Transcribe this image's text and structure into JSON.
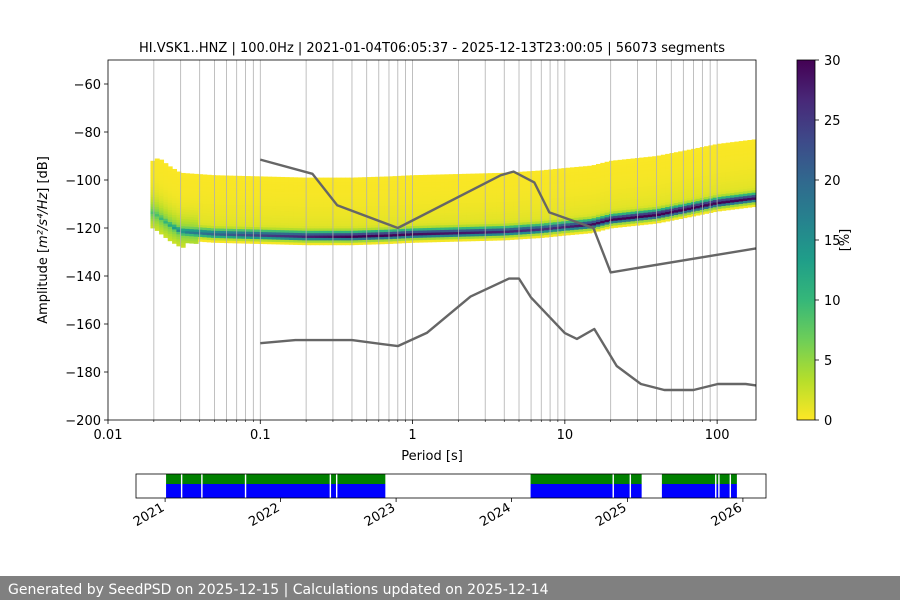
{
  "chart_data": [
    {
      "type": "heatmap",
      "title": "HI.VSK1..HNZ | 100.0Hz | 2021-01-04T06:05:37 - 2025-12-13T23:00:05 | 56073 segments",
      "xlabel": "Period [s]",
      "ylabel_main": "Amplitude [",
      "ylabel_math": "m²/s⁴/Hz",
      "ylabel_tail": "] [dB]",
      "xscale": "log",
      "xlim": [
        0.01,
        180
      ],
      "ylim": [
        -200,
        -50
      ],
      "xticks": [
        {
          "value": 0.01,
          "label": "0.01"
        },
        {
          "value": 0.1,
          "label": "0.1"
        },
        {
          "value": 1,
          "label": "1"
        },
        {
          "value": 10,
          "label": "10"
        },
        {
          "value": 100,
          "label": "100"
        }
      ],
      "yticks": [
        -60,
        -80,
        -100,
        -120,
        -140,
        -160,
        -180,
        -200
      ],
      "grid": "vertical, minor log periods from 0.02 to 180 s",
      "colorbar": {
        "label": "[%]",
        "range": [
          0,
          30
        ],
        "ticks": [
          0,
          5,
          10,
          15,
          20,
          25,
          30
        ],
        "colormap": "viridis_r",
        "stops": [
          "#fde725",
          "#b5de2b",
          "#6ece58",
          "#35b779",
          "#1f9e89",
          "#26828e",
          "#31688e",
          "#3e4989",
          "#482878",
          "#440154"
        ]
      },
      "density_ridge": {
        "period_s": [
          0.02,
          0.025,
          0.03,
          0.05,
          0.1,
          0.2,
          0.4,
          0.7,
          1,
          2,
          4,
          7,
          10,
          15,
          20,
          40,
          70,
          100,
          180
        ],
        "mode_db": [
          -114,
          -119,
          -122,
          -123,
          -123.5,
          -124,
          -124,
          -123.5,
          -123,
          -122.5,
          -122,
          -121,
          -120,
          -119,
          -117,
          -115,
          -112,
          -110,
          -108
        ],
        "peak_percent": [
          6,
          9,
          14,
          18,
          22,
          25,
          28,
          28,
          27,
          26,
          25,
          24,
          25,
          27,
          28,
          30,
          30,
          29,
          27
        ]
      },
      "series": [
        {
          "name": "high noise model",
          "color": "#666666",
          "x": [
            0.1,
            0.22,
            0.32,
            0.8,
            3.8,
            4.6,
            6.3,
            7.9,
            15.4,
            20,
            180
          ],
          "y": [
            -91.5,
            -97.4,
            -110.5,
            -120,
            -98,
            -96.5,
            -101,
            -113.5,
            -120,
            -138.5,
            -128.5
          ]
        },
        {
          "name": "low noise model",
          "color": "#666666",
          "x": [
            0.1,
            0.17,
            0.4,
            0.8,
            1.24,
            2.4,
            4.3,
            5,
            6,
            10,
            12,
            15.6,
            21.9,
            31.6,
            45,
            70,
            101,
            154,
            180
          ],
          "y": [
            -168,
            -166.7,
            -166.7,
            -169.2,
            -163.7,
            -148.6,
            -141.1,
            -141.1,
            -149,
            -163.8,
            -166.2,
            -162.1,
            -177.5,
            -185,
            -187.5,
            -187.5,
            -185,
            -185,
            -185.6
          ]
        }
      ]
    },
    {
      "type": "timeline",
      "xticks": [
        "2021",
        "2022",
        "2023",
        "2024",
        "2025",
        "2026"
      ],
      "data_color": "#0000ff",
      "processed_color": "#008000",
      "coverage": [
        {
          "start": "2021-01-04",
          "end": "2022-11-28"
        },
        {
          "start": "2024-03-01",
          "end": "2025-02-15"
        },
        {
          "start": "2025-04-20",
          "end": "2025-12-13"
        }
      ],
      "gaps": [
        "2021-02-20",
        "2021-04-25",
        "2021-09-10",
        "2022-06-05",
        "2022-06-25",
        "2024-11-15",
        "2025-01-08",
        "2025-10-05",
        "2025-10-15",
        "2025-11-20"
      ]
    }
  ],
  "footer": {
    "text": "Generated by SeedPSD on 2025-12-15 | Calculations updated on 2025-12-14"
  }
}
